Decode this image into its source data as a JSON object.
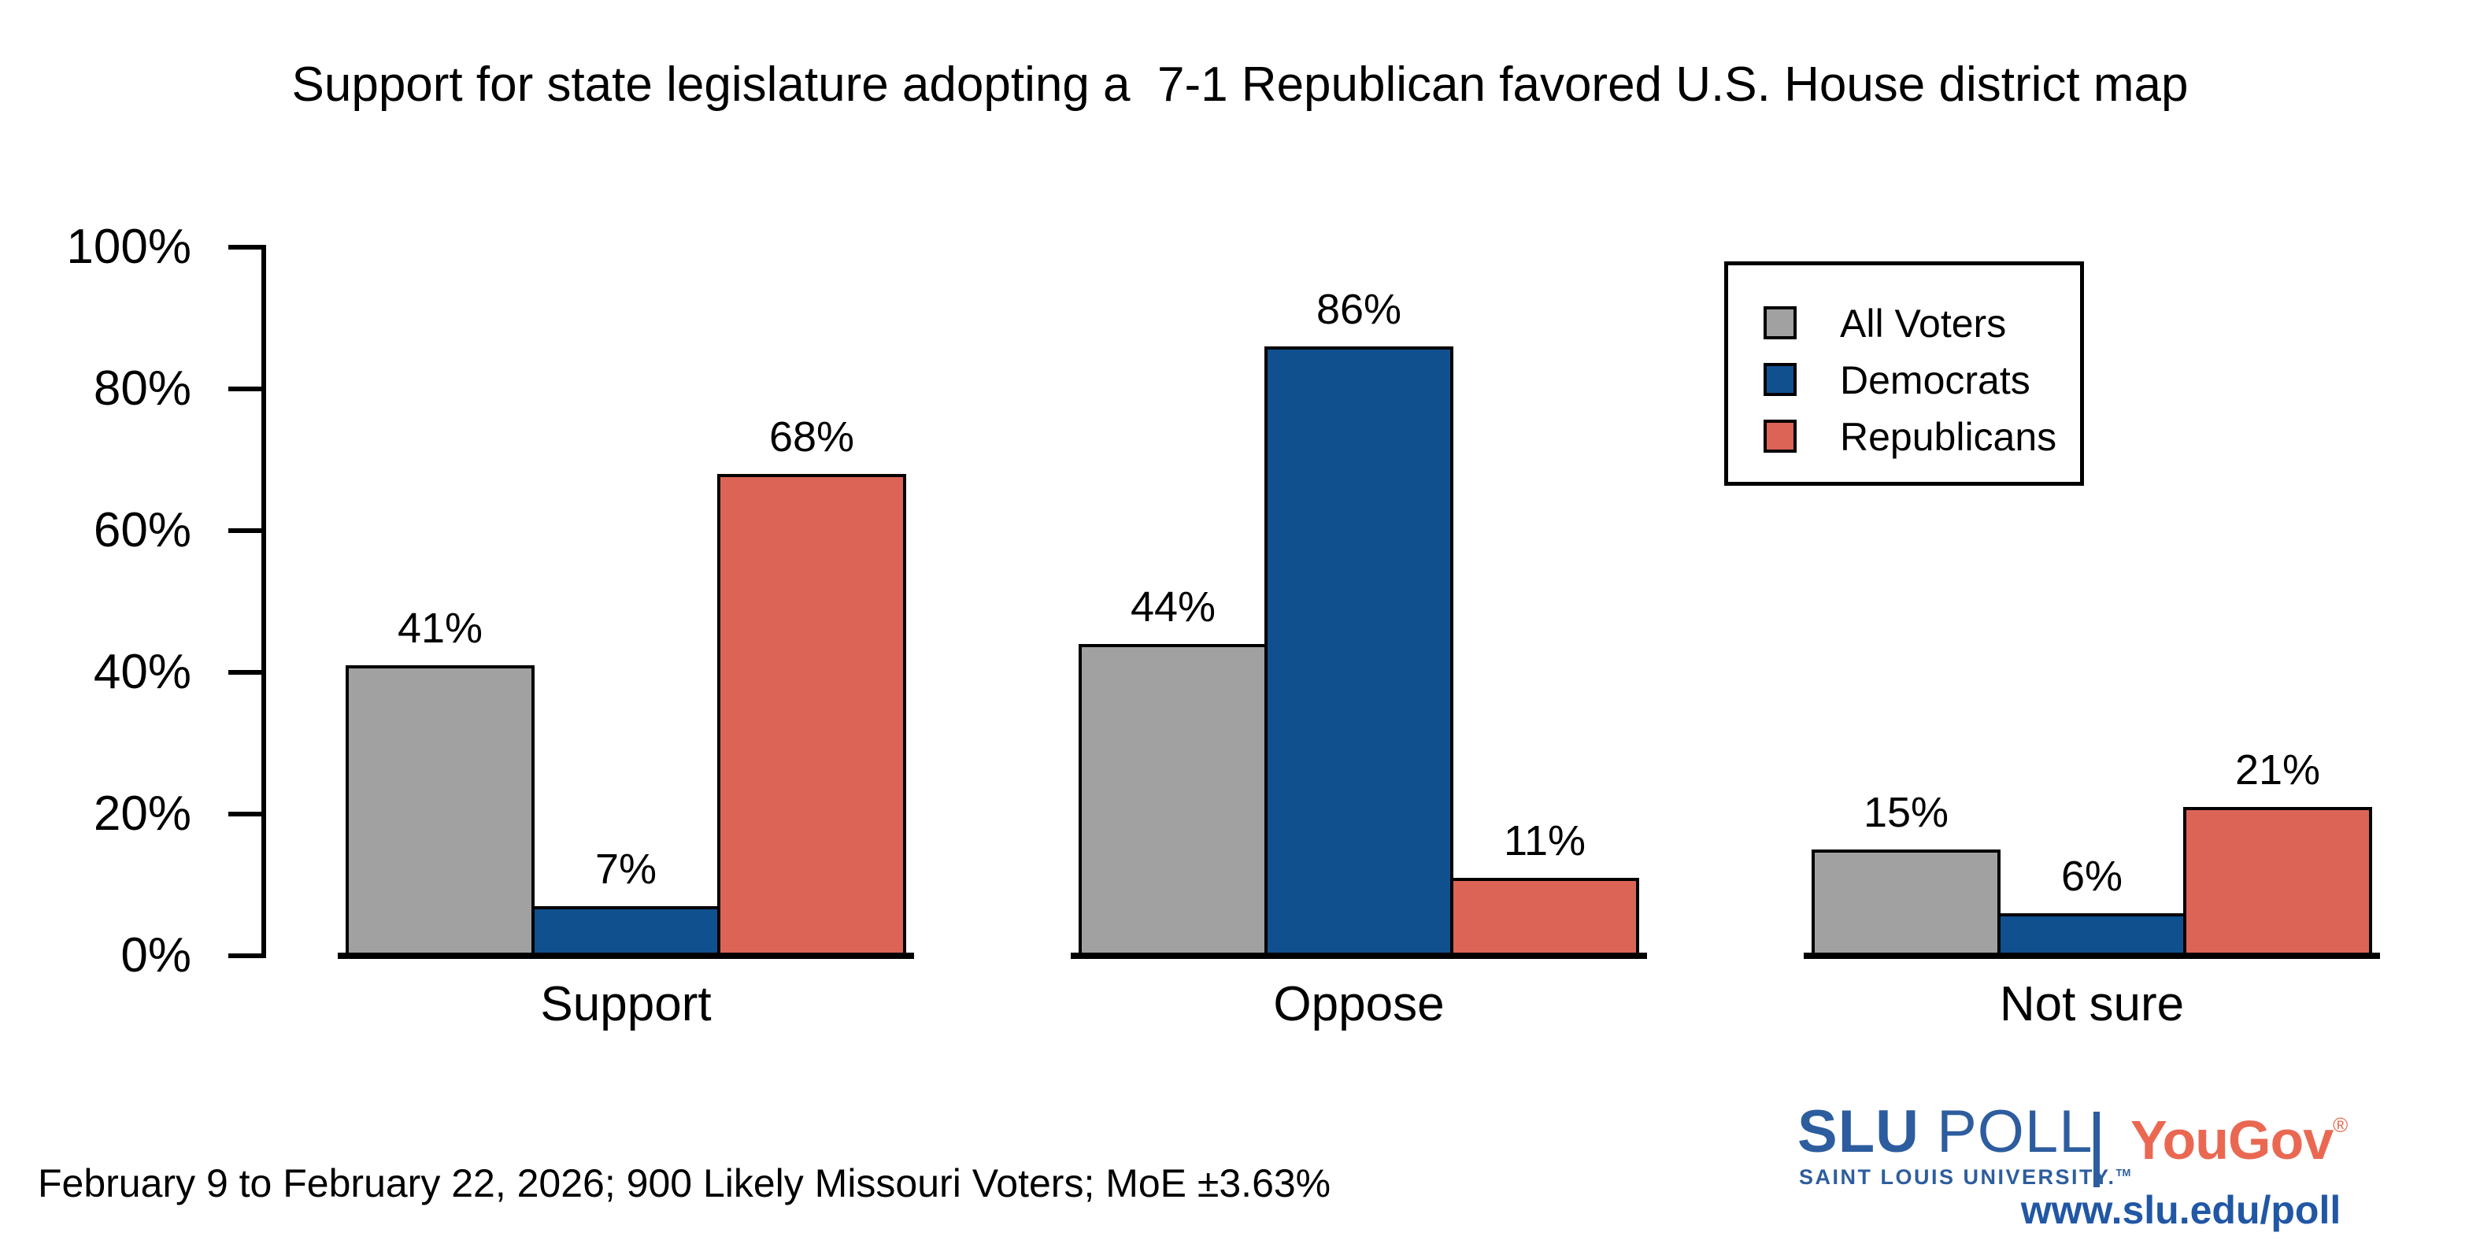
{
  "title": "Support for state legislature adopting a  7-1 Republican favored U.S. House district map",
  "chart_data": {
    "type": "bar",
    "categories": [
      "Support",
      "Oppose",
      "Not sure"
    ],
    "series": [
      {
        "name": "All Voters",
        "color": "#a1a1a1",
        "values": [
          41,
          44,
          15
        ]
      },
      {
        "name": "Democrats",
        "color": "#11508f",
        "values": [
          7,
          86,
          6
        ]
      },
      {
        "name": "Republicans",
        "color": "#dc6456",
        "values": [
          68,
          11,
          21
        ]
      }
    ],
    "value_suffix": "%",
    "xlabel": "",
    "ylabel": "",
    "ylim": [
      0,
      100
    ],
    "ytick_step": 20,
    "ytick_labels": [
      "0%",
      "20%",
      "40%",
      "60%",
      "80%",
      "100%"
    ],
    "grid": false,
    "legend_position": "top-right",
    "bar_outline_color": "#000000"
  },
  "footer": {
    "note": "February 9 to February 22, 2026; 900 Likely Missouri Voters; MoE ±3.63%"
  },
  "branding": {
    "slu_name_bold": "SLU",
    "slu_name_light": " POLL",
    "slu_subtitle": "SAINT LOUIS UNIVERSITY.",
    "slu_trademark": "TM",
    "yougov_name": "YouGov",
    "yougov_registered": "®",
    "url": "www.slu.edu/poll",
    "slu_blue": "#2d5d9e",
    "yougov_salmon": "#ea6852",
    "url_blue": "#2157a4"
  }
}
